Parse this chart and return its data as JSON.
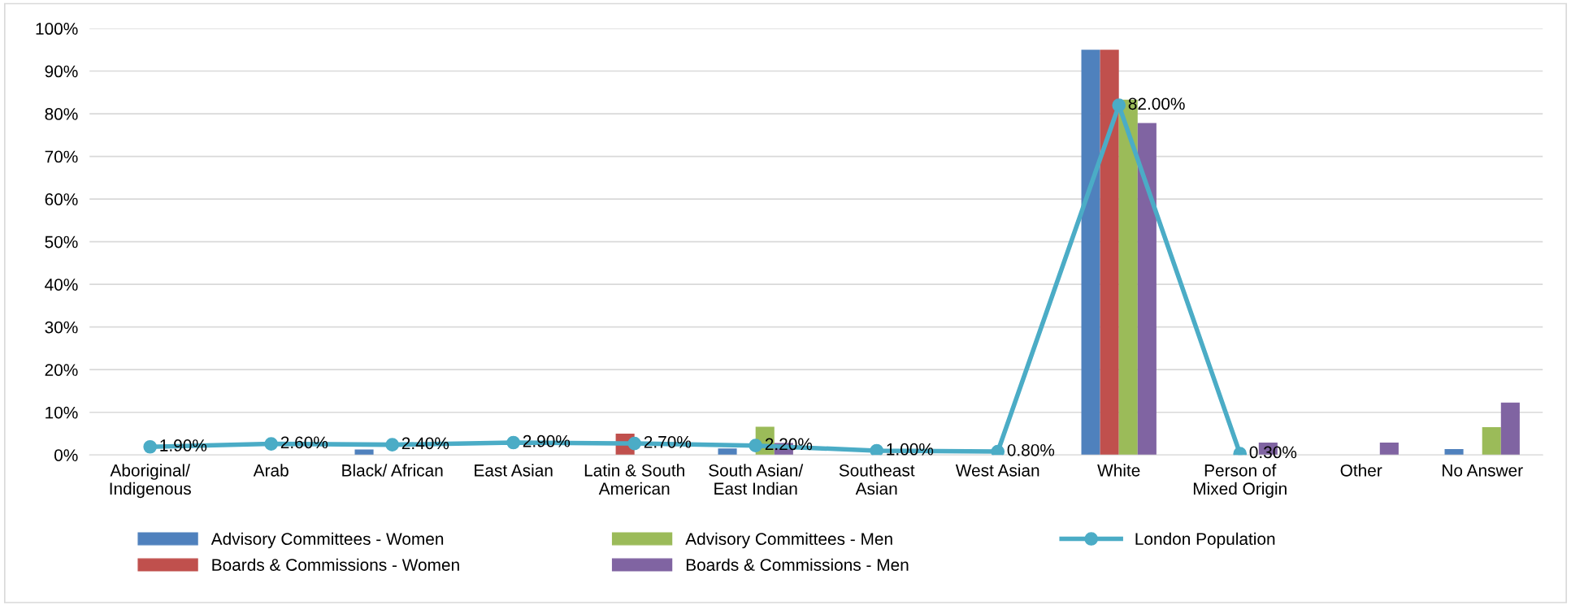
{
  "chart_data": {
    "type": "bar",
    "categories": [
      "Aboriginal/\nIndigenous",
      "Arab",
      "Black/ African",
      "East Asian",
      "Latin & South\nAmerican",
      "South Asian/\nEast Indian",
      "Southeast\nAsian",
      "West Asian",
      "White",
      "Person of\nMixed Origin",
      "Other",
      "No Answer"
    ],
    "series": [
      {
        "name": "Advisory Committees - Women",
        "color": "#4f81bd",
        "values": [
          0,
          0,
          1.3,
          0,
          0,
          1.5,
          0,
          0,
          95,
          0,
          0,
          1.4
        ]
      },
      {
        "name": "Boards & Commissions - Women",
        "color": "#c0504d",
        "values": [
          0,
          0,
          0,
          0,
          5.0,
          0,
          0,
          0,
          95,
          0,
          0,
          0
        ]
      },
      {
        "name": "Advisory Committees - Men",
        "color": "#9bbb59",
        "values": [
          0,
          0,
          0,
          0,
          0,
          6.6,
          0,
          0,
          83.3,
          0,
          0,
          6.5
        ]
      },
      {
        "name": "Boards & Commissions - Men",
        "color": "#8064a2",
        "values": [
          0,
          0,
          0,
          0,
          0,
          2.8,
          0,
          0,
          77.8,
          2.9,
          2.9,
          12.3
        ]
      },
      {
        "name": "London Population",
        "type": "line",
        "color": "#4bacc6",
        "marker": "circle",
        "values": [
          1.9,
          2.6,
          2.4,
          2.9,
          2.7,
          2.2,
          1.0,
          0.8,
          82.0,
          0.3,
          null,
          null
        ],
        "value_labels": [
          "1.90%",
          "2.60%",
          "2.40%",
          "2.90%",
          "2.70%",
          "2.20%",
          "1.00%",
          "0.80%",
          "82.00%",
          "0.30%",
          null,
          null
        ]
      }
    ],
    "ylim": [
      0,
      100
    ],
    "yticks": [
      {
        "value": 0,
        "label": "0%"
      },
      {
        "value": 10,
        "label": "10%"
      },
      {
        "value": 20,
        "label": "20%"
      },
      {
        "value": 30,
        "label": "30%"
      },
      {
        "value": 40,
        "label": "40%"
      },
      {
        "value": 50,
        "label": "50%"
      },
      {
        "value": 60,
        "label": "60%"
      },
      {
        "value": 70,
        "label": "70%"
      },
      {
        "value": 80,
        "label": "80%"
      },
      {
        "value": 90,
        "label": "90%"
      },
      {
        "value": 100,
        "label": "100%"
      }
    ],
    "grid": "y",
    "legend": "bottom"
  }
}
